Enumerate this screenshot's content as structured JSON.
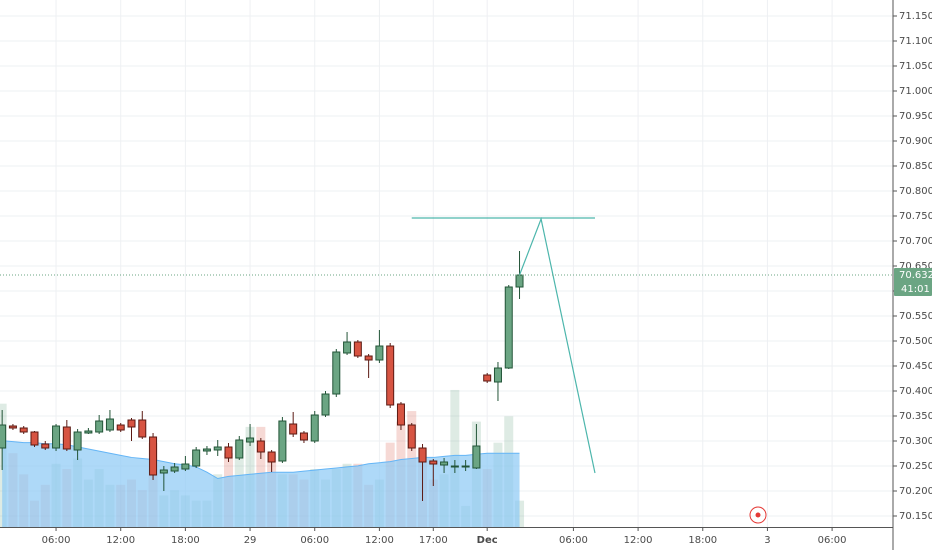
{
  "chart_data": {
    "type": "candlestick",
    "xlim": [
      -0.2,
      82.65
    ],
    "xticks": [
      {
        "value": 5,
        "label": "06:00"
      },
      {
        "value": 11,
        "label": "12:00"
      },
      {
        "value": 17,
        "label": "18:00"
      },
      {
        "value": 23,
        "label": "29"
      },
      {
        "value": 29,
        "label": "06:00"
      },
      {
        "value": 35,
        "label": "12:00"
      },
      {
        "value": 40,
        "label": "17:00"
      },
      {
        "value": 45,
        "label": "Dec"
      },
      {
        "value": 53,
        "label": "06:00"
      },
      {
        "value": 59,
        "label": "12:00"
      },
      {
        "value": 65,
        "label": "18:00"
      },
      {
        "value": 71,
        "label": "3"
      },
      {
        "value": 77,
        "label": "06:00"
      }
    ],
    "ylim": [
      70.128,
      71.182
    ],
    "yticks": [
      {
        "value": 71.15,
        "label": "71.150"
      },
      {
        "value": 71.1,
        "label": "71.100"
      },
      {
        "value": 71.05,
        "label": "71.050"
      },
      {
        "value": 71.0,
        "label": "71.000"
      },
      {
        "value": 70.95,
        "label": "70.950"
      },
      {
        "value": 70.9,
        "label": "70.900"
      },
      {
        "value": 70.85,
        "label": "70.850"
      },
      {
        "value": 70.8,
        "label": "70.800"
      },
      {
        "value": 70.75,
        "label": "70.750"
      },
      {
        "value": 70.7,
        "label": "70.700"
      },
      {
        "value": 70.65,
        "label": "70.650"
      },
      {
        "value": 70.6,
        "label": "70.600"
      },
      {
        "value": 70.55,
        "label": "70.550"
      },
      {
        "value": 70.5,
        "label": "70.500"
      },
      {
        "value": 70.45,
        "label": "70.450"
      },
      {
        "value": 70.4,
        "label": "70.400"
      },
      {
        "value": 70.35,
        "label": "70.350"
      },
      {
        "value": 70.3,
        "label": "70.300"
      },
      {
        "value": 70.25,
        "label": "70.250"
      },
      {
        "value": 70.2,
        "label": "70.200"
      },
      {
        "value": 70.15,
        "label": "70.150"
      }
    ],
    "grid": true,
    "y2lim": [
      0,
      50
    ],
    "open": [
      70.286,
      70.33,
      70.326,
      70.318,
      70.294,
      70.286,
      70.328,
      70.282,
      70.316,
      70.318,
      70.322,
      70.332,
      70.342,
      70.342,
      70.308,
      70.236,
      70.24,
      70.244,
      70.25,
      70.28,
      70.282,
      70.288,
      70.266,
      70.298,
      70.3,
      70.278,
      70.26,
      70.334,
      70.316,
      70.3,
      70.352,
      70.394,
      70.476,
      70.498,
      70.47,
      70.462,
      70.49,
      70.374,
      70.332,
      70.286,
      70.26,
      70.252,
      70.248,
      70.248,
      70.246,
      70.432,
      70.418,
      70.446,
      70.608
    ],
    "high": [
      70.362,
      70.334,
      70.33,
      70.32,
      70.3,
      70.334,
      70.342,
      70.324,
      70.326,
      70.352,
      70.362,
      70.336,
      70.346,
      70.36,
      70.316,
      70.25,
      70.256,
      70.27,
      70.288,
      70.29,
      70.302,
      70.296,
      70.31,
      70.334,
      70.306,
      70.282,
      70.348,
      70.358,
      70.32,
      70.36,
      70.4,
      70.484,
      70.518,
      70.502,
      70.474,
      70.522,
      70.496,
      70.378,
      70.336,
      70.294,
      70.264,
      70.266,
      70.262,
      70.262,
      70.334,
      70.436,
      70.458,
      70.612,
      70.68
    ],
    "low": [
      70.242,
      70.322,
      70.314,
      70.288,
      70.282,
      70.28,
      70.28,
      70.262,
      70.314,
      70.314,
      70.318,
      70.318,
      70.3,
      70.304,
      70.222,
      70.2,
      70.236,
      70.24,
      70.246,
      70.272,
      70.27,
      70.258,
      70.262,
      70.29,
      70.264,
      70.238,
      70.256,
      70.308,
      70.296,
      70.296,
      70.348,
      70.388,
      70.472,
      70.466,
      70.426,
      70.456,
      70.366,
      70.322,
      70.28,
      70.18,
      70.21,
      70.236,
      70.236,
      70.24,
      70.244,
      70.416,
      70.38,
      70.444,
      70.584
    ],
    "close": [
      70.332,
      70.326,
      70.318,
      70.292,
      70.286,
      70.33,
      70.284,
      70.318,
      70.32,
      70.34,
      70.344,
      70.322,
      70.328,
      70.308,
      70.232,
      70.242,
      70.248,
      70.254,
      70.282,
      70.284,
      70.288,
      70.266,
      70.302,
      70.306,
      70.278,
      70.258,
      70.34,
      70.314,
      70.302,
      70.352,
      70.394,
      70.478,
      70.498,
      70.47,
      70.462,
      70.49,
      70.372,
      70.332,
      70.286,
      70.258,
      70.254,
      70.258,
      70.25,
      70.25,
      70.29,
      70.42,
      70.446,
      70.608,
      70.632
    ],
    "up_color": "#6ba583",
    "down_color": "#d75442",
    "volume": [
      11.7,
      7,
      5,
      2.5,
      4,
      6,
      5.5,
      6.5,
      4.5,
      5.5,
      4,
      4,
      4.5,
      3.5,
      8,
      3,
      3.5,
      3,
      2.5,
      2.5,
      5,
      7,
      8,
      9.5,
      9.5,
      7,
      5,
      5,
      4.5,
      5.5,
      4.5,
      5.5,
      6,
      6,
      4,
      4.5,
      8,
      10,
      11,
      7.5,
      4.5,
      5,
      13,
      2,
      10,
      5.5,
      8,
      10.5,
      2.5
    ],
    "volume_ma": [
      8.2,
      8.1,
      8.0,
      8.0,
      7.9,
      7.9,
      7.8,
      7.6,
      7.4,
      7.2,
      7.0,
      6.8,
      6.6,
      6.5,
      6.4,
      6.2,
      6.0,
      5.9,
      5.7,
      5.2,
      4.6,
      4.8,
      4.9,
      5.0,
      5.1,
      5.2,
      5.2,
      5.2,
      5.3,
      5.4,
      5.5,
      5.6,
      5.7,
      5.8,
      6.0,
      6.1,
      6.2,
      6.4,
      6.5,
      6.6,
      6.6,
      6.7,
      6.8,
      6.8,
      6.9,
      7.0,
      7.0,
      7.0,
      7.0
    ],
    "volume_ma_color": "#8cc9f5",
    "drawings": {
      "color": "#4db6ac",
      "lines": [
        {
          "x": [
            38,
            55
          ],
          "y": [
            70.746,
            70.746
          ]
        },
        {
          "x": [
            48,
            50,
            55
          ],
          "y": [
            70.632,
            70.744,
            70.236
          ]
        }
      ]
    },
    "last_price": 70.632,
    "countdown": "41:01"
  }
}
